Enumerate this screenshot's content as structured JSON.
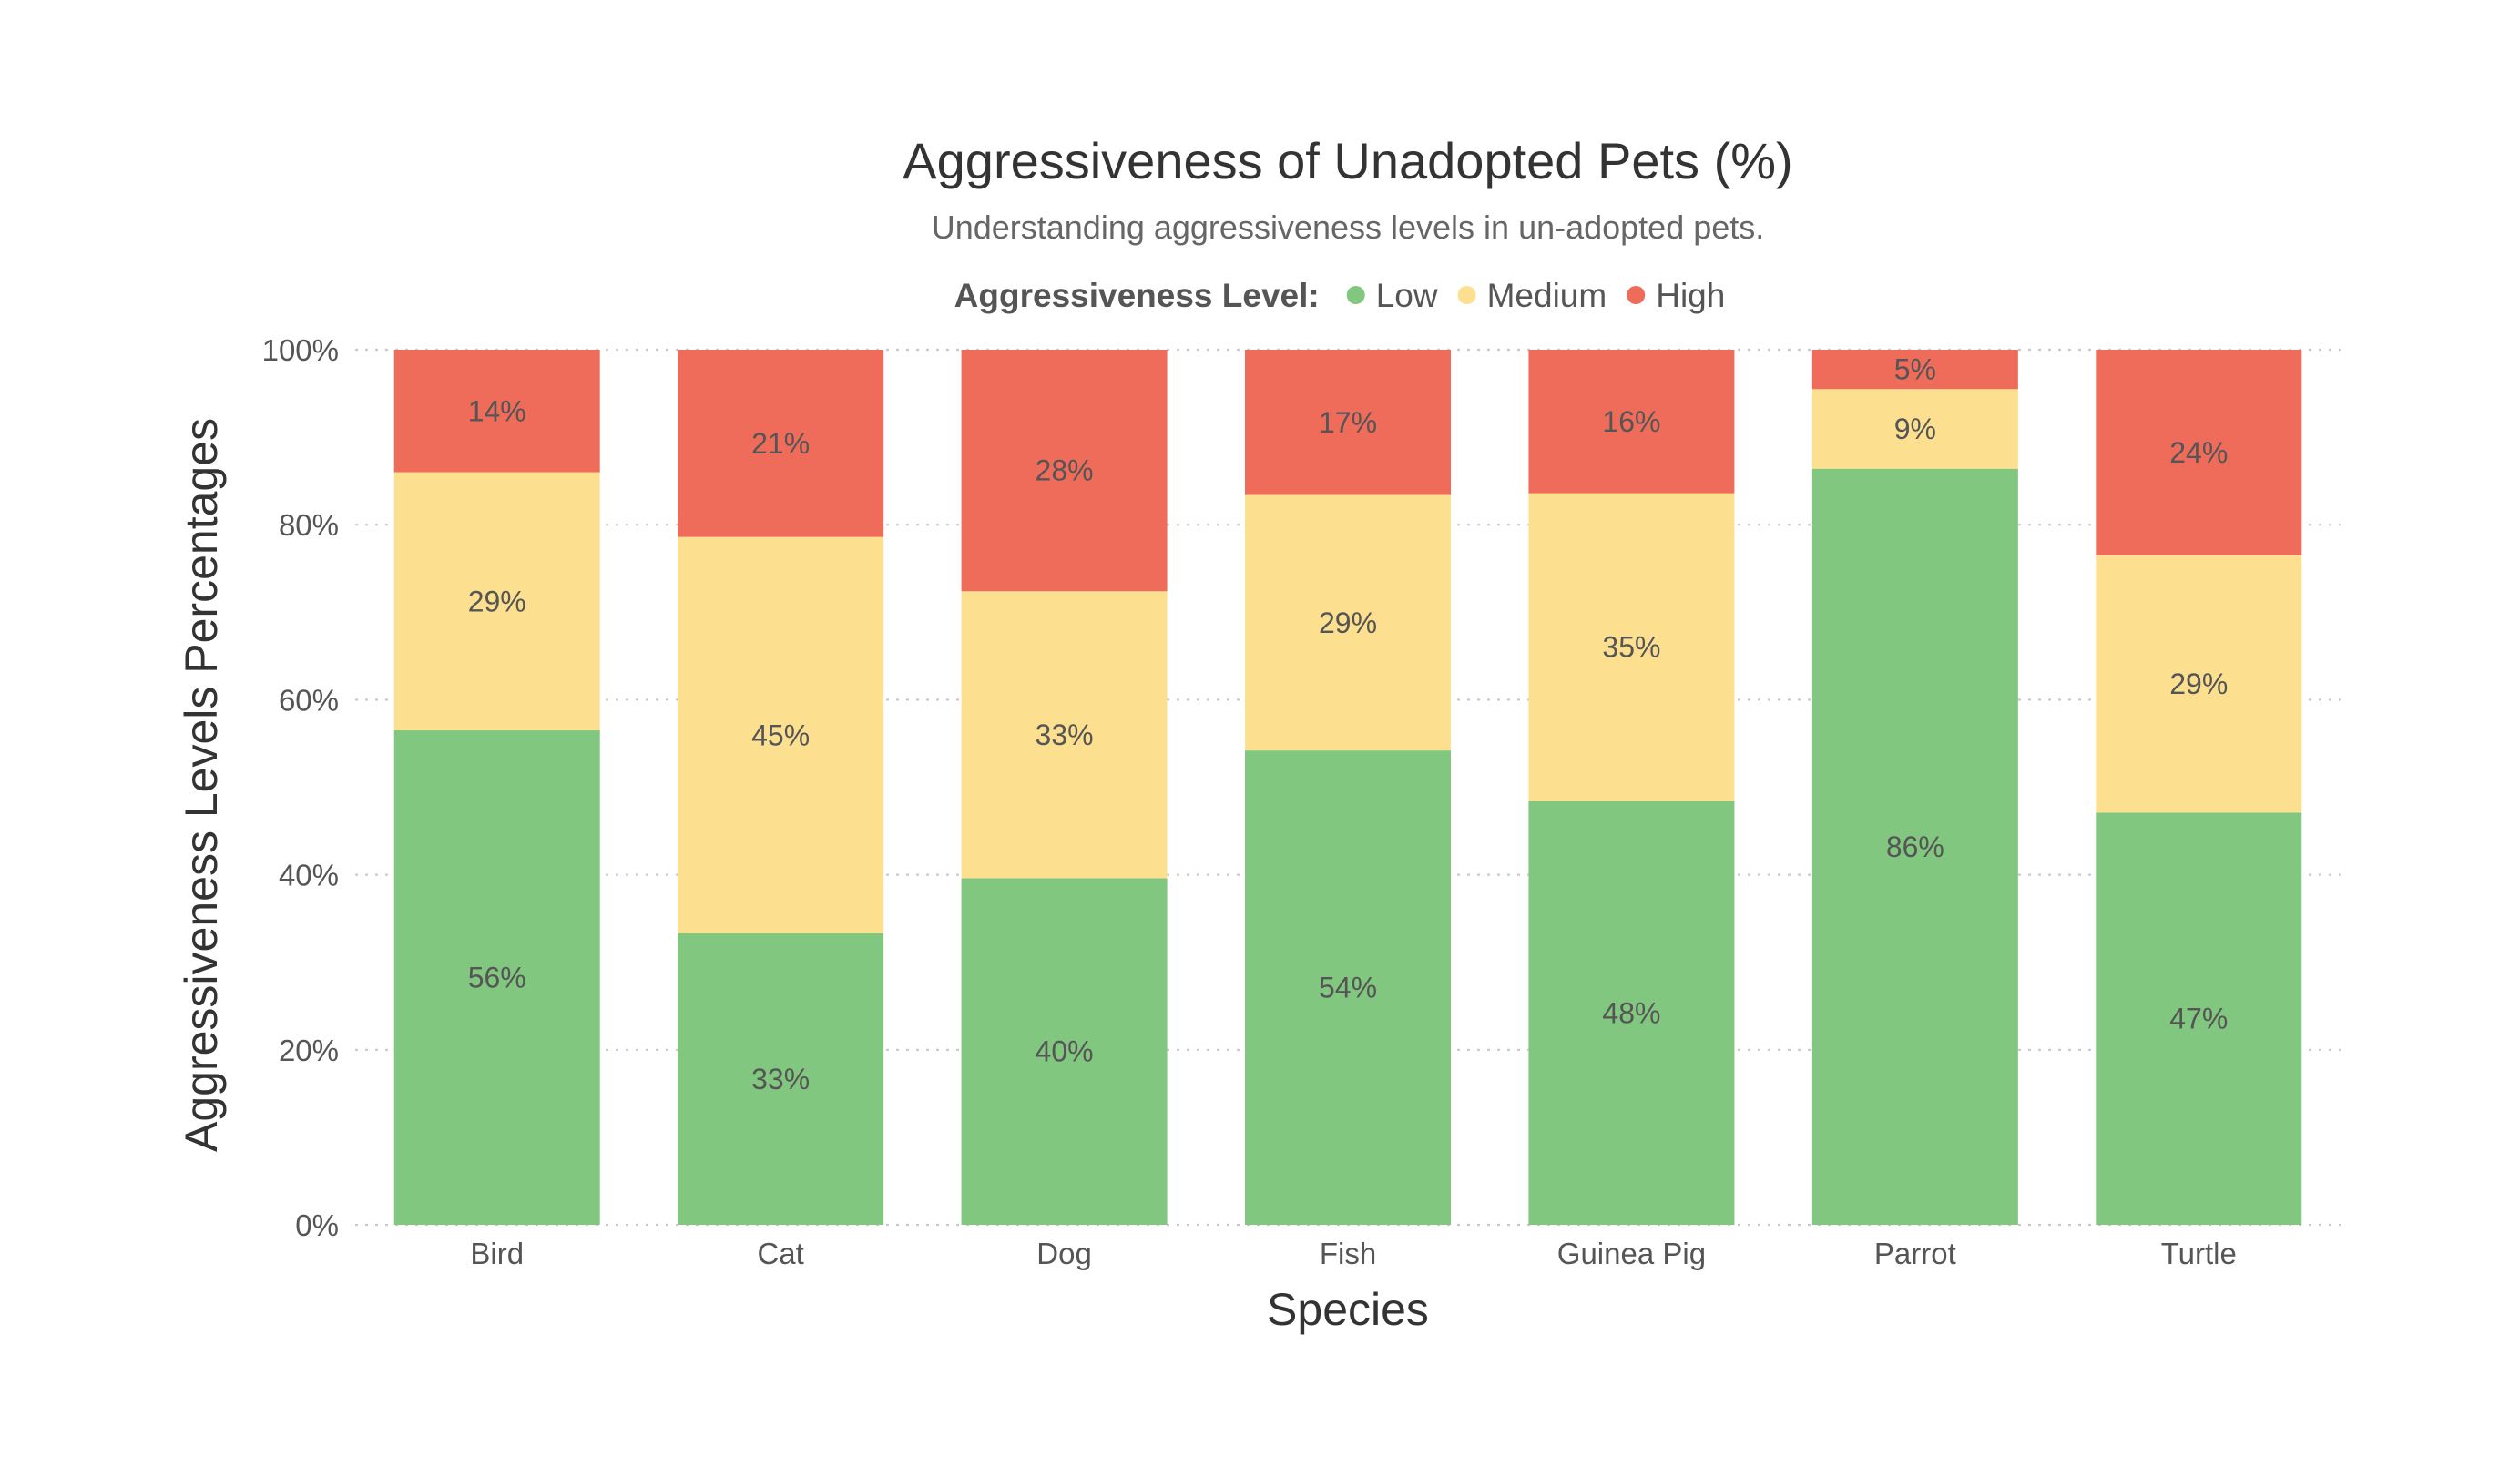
{
  "chart_data": {
    "type": "bar",
    "stacked": true,
    "percent": true,
    "title": "Aggressiveness of Unadopted Pets (%)",
    "subtitle": "Understanding aggressiveness levels in un-adopted pets.",
    "xlabel": "Species",
    "ylabel": "Aggressiveness Levels Percentages",
    "ylim": [
      0,
      100
    ],
    "yticks": [
      "0%",
      "20%",
      "40%",
      "60%",
      "80%",
      "100%"
    ],
    "ytick_values": [
      0,
      20,
      40,
      60,
      80,
      100
    ],
    "grid": "horizontal dotted",
    "legend": {
      "title": "Aggressiveness Level:",
      "placement": "top-center",
      "entries": [
        "Low",
        "Medium",
        "High"
      ]
    },
    "categories": [
      "Bird",
      "Cat",
      "Dog",
      "Fish",
      "Guinea Pig",
      "Parrot",
      "Turtle"
    ],
    "series": [
      {
        "name": "Low",
        "color": "#81c77f",
        "values": [
          56.5,
          33.3,
          39.6,
          54.2,
          48.4,
          86.4,
          47.1
        ],
        "labels": [
          "56%",
          "33%",
          "40%",
          "54%",
          "48%",
          "86%",
          "47%"
        ]
      },
      {
        "name": "Medium",
        "color": "#fce08f",
        "values": [
          29.5,
          45.3,
          32.8,
          29.2,
          35.2,
          9.1,
          29.4
        ],
        "labels": [
          "29%",
          "45%",
          "33%",
          "29%",
          "35%",
          "9%",
          "29%"
        ]
      },
      {
        "name": "High",
        "color": "#f06c5a",
        "values": [
          14.0,
          21.4,
          27.6,
          16.6,
          16.4,
          4.5,
          23.5
        ],
        "labels": [
          "14%",
          "21%",
          "28%",
          "17%",
          "16%",
          "5%",
          "24%"
        ]
      }
    ]
  }
}
